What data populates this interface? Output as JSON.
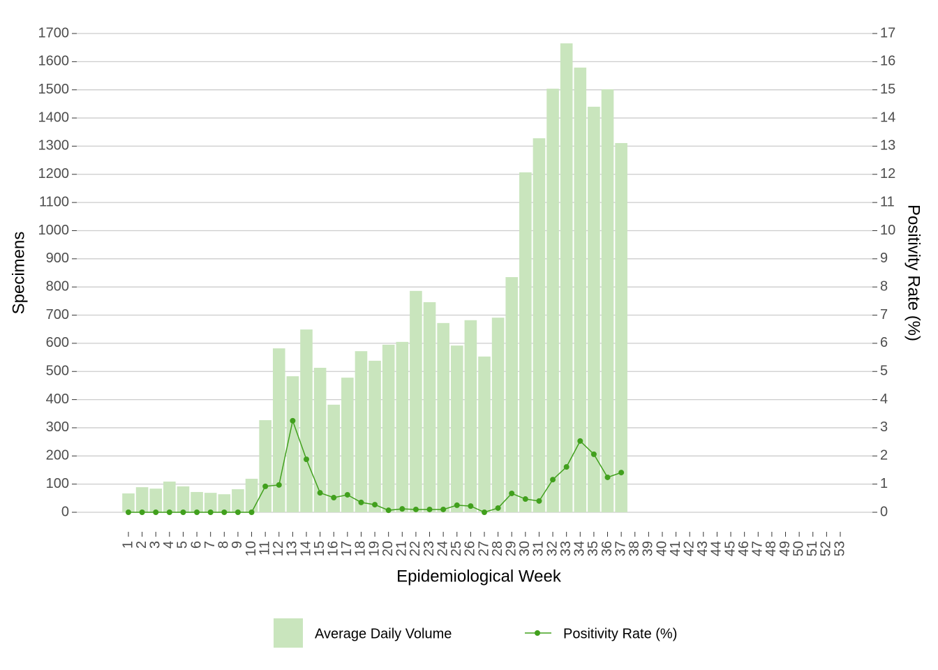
{
  "chart_data": {
    "type": "bar+line",
    "xlabel": "Epidemiological Week",
    "ylabel": "Specimens",
    "y2label": "Positivity Rate (%)",
    "categories": [
      1,
      2,
      3,
      4,
      5,
      6,
      7,
      8,
      9,
      10,
      11,
      12,
      13,
      14,
      15,
      16,
      17,
      18,
      19,
      20,
      21,
      22,
      23,
      24,
      25,
      26,
      27,
      28,
      29,
      30,
      31,
      32,
      33,
      34,
      35,
      36,
      37,
      38,
      39,
      40,
      41,
      42,
      43,
      44,
      45,
      46,
      47,
      48,
      49,
      50,
      51,
      52,
      53
    ],
    "ylim": [
      0,
      1700
    ],
    "yticks": [
      0,
      100,
      200,
      300,
      400,
      500,
      600,
      700,
      800,
      900,
      1000,
      1100,
      1200,
      1300,
      1400,
      1500,
      1600,
      1700
    ],
    "y2lim": [
      0,
      17
    ],
    "y2ticks": [
      0,
      1,
      2,
      3,
      4,
      5,
      6,
      7,
      8,
      9,
      10,
      11,
      12,
      13,
      14,
      15,
      16,
      17
    ],
    "grid": true,
    "legend": "bottom",
    "series": [
      {
        "name": "Average Daily Volume",
        "type": "bar",
        "color": "#c9e5bd",
        "values": [
          67,
          89,
          84,
          109,
          92,
          72,
          69,
          64,
          82,
          119,
          327,
          582,
          483,
          649,
          513,
          382,
          478,
          572,
          538,
          595,
          605,
          786,
          746,
          672,
          592,
          682,
          553,
          691,
          835,
          1207,
          1328,
          1504,
          1665,
          1579,
          1440,
          1502,
          1311,
          null,
          null,
          null,
          null,
          null,
          null,
          null,
          null,
          null,
          null,
          null,
          null,
          null,
          null,
          null,
          null
        ]
      },
      {
        "name": "Positivity Rate (%)",
        "type": "line",
        "axis": "y2",
        "color": "#41a01d",
        "values": [
          0,
          0,
          0,
          0,
          0,
          0,
          0,
          0,
          0,
          0,
          0.92,
          0.97,
          3.25,
          1.88,
          0.69,
          0.52,
          0.62,
          0.35,
          0.27,
          0.07,
          0.12,
          0.1,
          0.1,
          0.1,
          0.25,
          0.22,
          0,
          0.15,
          0.67,
          0.47,
          0.4,
          1.16,
          1.61,
          2.53,
          2.06,
          1.24,
          1.41,
          null,
          null,
          null,
          null,
          null,
          null,
          null,
          null,
          null,
          null,
          null,
          null,
          null,
          null,
          null,
          null
        ]
      }
    ]
  }
}
